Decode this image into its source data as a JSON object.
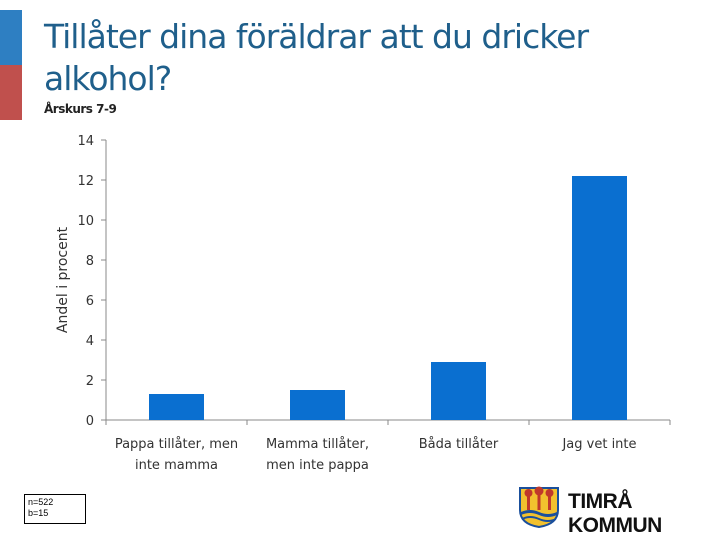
{
  "header": {
    "title_line1": "Tillåter dina föräldrar att du dricker",
    "title_line2": "alkohol?",
    "subtitle": "Årskurs 7-9"
  },
  "note": {
    "line1": "n=522",
    "line2": "b=15"
  },
  "logo": {
    "text": "TIMRÅ KOMMUN"
  },
  "colors": {
    "bar": "#0a6fd0",
    "accent_top": "#2e7fc2",
    "accent_bottom": "#c0504d",
    "title": "#1f5f8b"
  },
  "chart_data": {
    "type": "bar",
    "ylabel": "Andel i procent",
    "xlabel": "",
    "ylim": [
      0,
      14
    ],
    "yticks": [
      0,
      2,
      4,
      6,
      8,
      10,
      12,
      14
    ],
    "categories": [
      [
        "Pappa tillåter, men",
        "inte mamma"
      ],
      [
        "Mamma tillåter,",
        "men inte pappa"
      ],
      [
        "Båda tillåter"
      ],
      [
        "Jag vet inte"
      ]
    ],
    "values": [
      1.3,
      1.5,
      2.9,
      12.2
    ],
    "grid": false,
    "legend": "none"
  }
}
